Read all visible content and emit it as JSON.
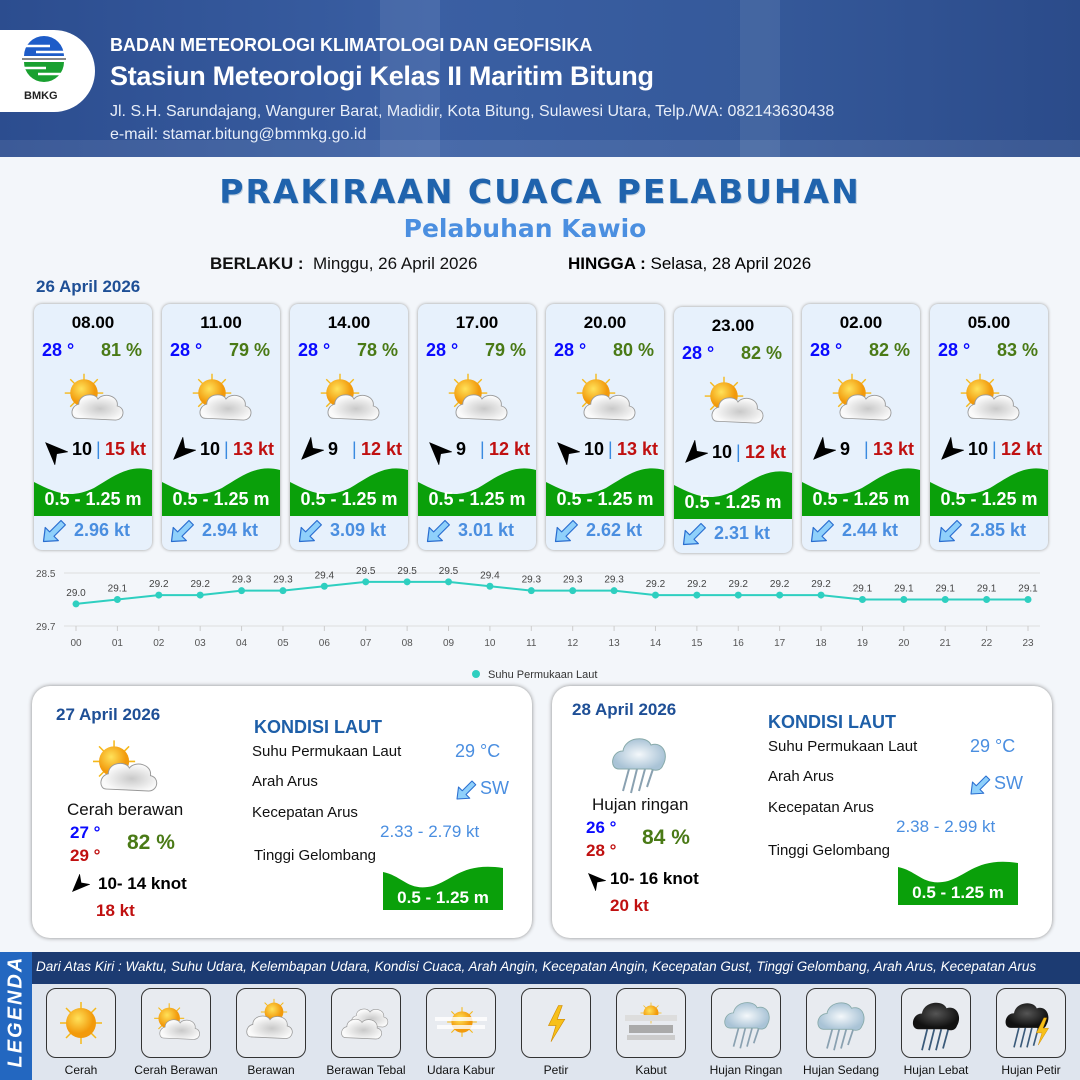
{
  "header": {
    "logo_text": "BMKG",
    "agency": "BADAN METEOROLOGI KLIMATOLOGI DAN GEOFISIKA",
    "station": "Stasiun Meteorologi Kelas II Maritim Bitung",
    "address": "Jl. S.H. Sarundajang, Wangurer Barat, Madidir, Kota Bitung, Sulawesi Utara, Telp./WA: 082143630438",
    "email": "e-mail: stamar.bitung@bmmkg.go.id"
  },
  "title": "PRAKIRAAN CUACA PELABUHAN",
  "subtitle": "Pelabuhan Kawio",
  "validity": {
    "from_label": "BERLAKU :",
    "from": "Minggu, 26 April 2026",
    "to_label": "HINGGA :",
    "to": "Selasa, 28 April 2026"
  },
  "day1_date": "26 April 2026",
  "forecasts": [
    {
      "time": "08.00",
      "temp": "28 °",
      "humidity": "81 %",
      "weather": "sun-cloud",
      "wind_toward": "N",
      "wind_speed": "10",
      "separator": "|",
      "gust": "15 kt",
      "wave": "0.5 - 1.25 m",
      "current_toward": "SW",
      "current_speed": "2.96 kt"
    },
    {
      "time": "11.00",
      "temp": "28 °",
      "humidity": "79 %",
      "weather": "sun-cloud",
      "wind_toward": "W",
      "wind_speed": "10",
      "separator": "|",
      "gust": "13 kt",
      "wave": "0.5 - 1.25 m",
      "current_toward": "SW",
      "current_speed": "2.94 kt"
    },
    {
      "time": "14.00",
      "temp": "28 °",
      "humidity": "78 %",
      "weather": "sun-cloud",
      "wind_toward": "W",
      "wind_speed": "9",
      "separator": "|",
      "gust": "12 kt",
      "wave": "0.5 - 1.25 m",
      "current_toward": "SW",
      "current_speed": "3.09 kt"
    },
    {
      "time": "17.00",
      "temp": "28 °",
      "humidity": "79 %",
      "weather": "sun-cloud",
      "wind_toward": "N",
      "wind_speed": "9",
      "separator": "|",
      "gust": "12 kt",
      "wave": "0.5 - 1.25 m",
      "current_toward": "SW",
      "current_speed": "3.01 kt"
    },
    {
      "time": "20.00",
      "temp": "28 °",
      "humidity": "80 %",
      "weather": "sun-cloud",
      "wind_toward": "N",
      "wind_speed": "10",
      "separator": "|",
      "gust": "13 kt",
      "wave": "0.5 - 1.25 m",
      "current_toward": "SW",
      "current_speed": "2.62 kt"
    },
    {
      "time": "23.00",
      "temp": "28 °",
      "humidity": "82 %",
      "weather": "sun-cloud",
      "wind_toward": "W",
      "wind_speed": "10",
      "separator": "|",
      "gust": "12 kt",
      "wave": "0.5 - 1.25 m",
      "current_toward": "SW",
      "current_speed": "2.31 kt"
    },
    {
      "time": "02.00",
      "temp": "28 °",
      "humidity": "82 %",
      "weather": "sun-cloud",
      "wind_toward": "W",
      "wind_speed": "9",
      "separator": "|",
      "gust": "13 kt",
      "wave": "0.5 - 1.25 m",
      "current_toward": "SW",
      "current_speed": "2.44 kt"
    },
    {
      "time": "05.00",
      "temp": "28 °",
      "humidity": "83 %",
      "weather": "sun-cloud",
      "wind_toward": "W",
      "wind_speed": "10",
      "separator": "|",
      "gust": "12 kt",
      "wave": "0.5 - 1.25 m",
      "current_toward": "SW",
      "current_speed": "2.85 kt"
    }
  ],
  "chart_data": {
    "type": "line",
    "categories": [
      "00",
      "01",
      "02",
      "03",
      "04",
      "05",
      "06",
      "07",
      "08",
      "09",
      "10",
      "11",
      "12",
      "13",
      "14",
      "15",
      "16",
      "17",
      "18",
      "19",
      "20",
      "21",
      "22",
      "23"
    ],
    "series": [
      {
        "name": "Suhu Permukaan Laut",
        "color": "#2ecfc0",
        "values": [
          29.0,
          29.1,
          29.2,
          29.2,
          29.3,
          29.3,
          29.4,
          29.5,
          29.5,
          29.5,
          29.4,
          29.3,
          29.3,
          29.3,
          29.2,
          29.2,
          29.2,
          29.2,
          29.2,
          29.1,
          29.1,
          29.1,
          29.1,
          29.1
        ]
      }
    ],
    "ylim": [
      28.5,
      29.7
    ],
    "yticks": [
      "28.5",
      "29.7"
    ],
    "grid": true,
    "legend": "bottom",
    "data_labels": true
  },
  "days": [
    {
      "date": "27 April 2026",
      "weather": "sun-cloud",
      "condition": "Cerah berawan",
      "tmin": "27 °",
      "tmax": "29 °",
      "humidity": "82 %",
      "wind_toward": "W",
      "wind": "10- 14 knot",
      "gust": "18 kt",
      "sea_title": "KONDISI LAUT",
      "sst_label": "Suhu Permukaan Laut",
      "sst": "29 °C",
      "dir_label": "Arah Arus",
      "dir": "SW",
      "speed_label": "Kecepatan Arus",
      "speed": "2.33 - 2.79 kt",
      "wave_label": "Tinggi Gelombang",
      "wave": "0.5 - 1.25 m"
    },
    {
      "date": "28 April 2026",
      "weather": "light-rain",
      "condition": "Hujan ringan",
      "tmin": "26 °",
      "tmax": "28 °",
      "humidity": "84 %",
      "wind_toward": "N",
      "wind": "10- 16 knot",
      "gust": "20 kt",
      "sea_title": "KONDISI LAUT",
      "sst_label": "Suhu Permukaan Laut",
      "sst": "29 °C",
      "dir_label": "Arah Arus",
      "dir": "SW",
      "speed_label": "Kecepatan Arus",
      "speed": "2.38 - 2.99 kt",
      "wave_label": "Tinggi Gelombang",
      "wave": "0.5 - 1.25 m"
    }
  ],
  "legend": {
    "title": "LEGENDA",
    "description": "Dari Atas Kiri : Waktu, Suhu Udara, Kelembapan Udara, Kondisi Cuaca, Arah Angin, Kecepatan Angin, Kecepatan Gust, Tinggi Gelombang, Arah Arus, Kecepatan Arus",
    "items": [
      {
        "label": "Cerah",
        "icon": "sun"
      },
      {
        "label": "Cerah Berawan",
        "icon": "sun-cloud"
      },
      {
        "label": "Berawan",
        "icon": "cloudy"
      },
      {
        "label": "Berawan Tebal",
        "icon": "overcast"
      },
      {
        "label": "Udara Kabur",
        "icon": "haze"
      },
      {
        "label": "Petir",
        "icon": "lightning"
      },
      {
        "label": "Kabut",
        "icon": "fog"
      },
      {
        "label": "Hujan Ringan",
        "icon": "light-rain"
      },
      {
        "label": "Hujan Sedang",
        "icon": "moderate-rain"
      },
      {
        "label": "Hujan Lebat",
        "icon": "heavy-rain"
      },
      {
        "label": "Hujan Petir",
        "icon": "thunderstorm"
      }
    ]
  }
}
